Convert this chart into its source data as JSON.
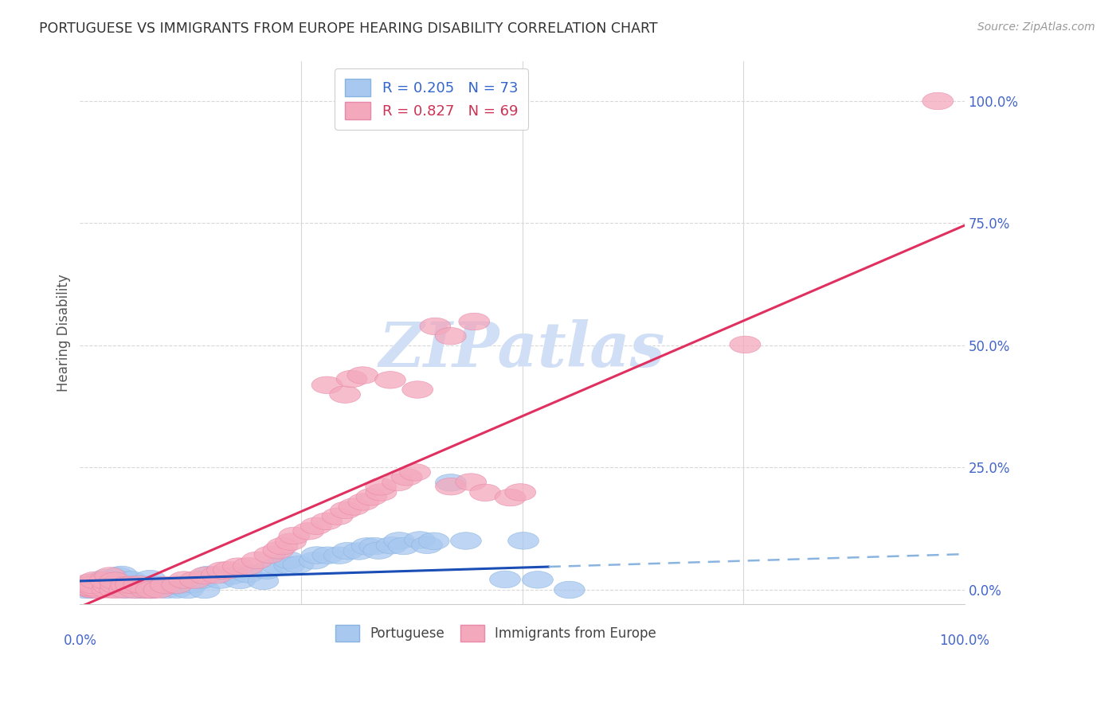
{
  "title": "PORTUGUESE VS IMMIGRANTS FROM EUROPE HEARING DISABILITY CORRELATION CHART",
  "source": "Source: ZipAtlas.com",
  "ylabel": "Hearing Disability",
  "ytick_values": [
    0,
    25,
    50,
    75,
    100
  ],
  "xlim": [
    0,
    100
  ],
  "ylim": [
    -3,
    108
  ],
  "portuguese_R": 0.205,
  "portuguese_N": 73,
  "immigrants_R": 0.827,
  "immigrants_N": 69,
  "blue_scatter_color": "#a8c8f0",
  "pink_scatter_color": "#f4a8bc",
  "blue_line_color": "#1a4db5",
  "pink_line_color": "#e03060",
  "blue_dashed_color": "#8ab4e0",
  "watermark_color": "#d0dff5",
  "background_color": "#ffffff",
  "grid_color": "#d8d8d8",
  "title_color": "#333333",
  "tick_label_color": "#4466cc",
  "legend_text_blue": "#3366cc",
  "legend_text_pink": "#cc3355",
  "slope_blue": 0.055,
  "intercept_blue": 1.8,
  "slope_pink": 0.78,
  "intercept_pink": -3.5,
  "solid_end_x": 53,
  "blue_scatter_x": [
    1,
    1,
    1,
    1,
    2,
    2,
    2,
    2,
    2,
    3,
    3,
    3,
    3,
    3,
    3,
    4,
    4,
    4,
    4,
    5,
    5,
    5,
    5,
    6,
    6,
    6,
    7,
    7,
    8,
    8,
    8,
    9,
    9,
    10,
    10,
    11,
    11,
    12,
    13,
    14,
    14,
    15,
    16,
    17,
    18,
    19,
    20,
    21,
    22,
    23,
    24,
    25,
    26,
    27,
    28,
    29,
    30,
    31,
    32,
    33,
    34,
    35,
    36,
    37,
    38,
    39,
    40,
    42,
    44,
    48,
    50,
    52,
    55
  ],
  "blue_scatter_y": [
    0,
    0,
    0.5,
    1,
    0,
    0.5,
    1,
    1.5,
    2,
    0,
    0.5,
    1,
    1.5,
    2,
    2.5,
    0,
    1,
    2,
    3,
    0,
    1,
    2,
    3,
    0,
    1,
    2,
    0,
    1,
    0,
    1,
    2,
    0,
    1,
    0,
    1,
    0,
    1,
    0,
    1,
    0,
    2,
    3,
    2,
    3,
    2,
    3,
    2,
    4,
    5,
    5,
    6,
    5,
    6,
    7,
    7,
    7,
    8,
    8,
    9,
    9,
    8,
    9,
    10,
    9,
    10,
    9,
    10,
    22,
    10,
    2,
    10,
    2,
    0
  ],
  "pink_scatter_x": [
    1,
    1,
    1,
    1,
    1,
    2,
    2,
    2,
    2,
    3,
    3,
    3,
    3,
    4,
    4,
    4,
    5,
    5,
    6,
    6,
    7,
    7,
    8,
    9,
    10,
    11,
    12,
    13,
    14,
    15,
    16,
    17,
    18,
    19,
    20,
    21,
    22,
    23,
    24,
    25,
    26,
    27,
    28,
    29,
    30,
    31,
    32,
    33,
    34,
    35,
    36,
    37,
    38,
    42,
    44,
    46,
    48,
    75,
    97,
    28,
    30,
    31,
    32,
    35,
    38,
    40,
    42,
    45,
    50
  ],
  "pink_scatter_y": [
    0,
    0,
    0.5,
    1,
    1.5,
    0,
    0.5,
    1,
    2,
    0,
    1,
    2,
    3,
    0,
    1,
    2,
    0,
    1,
    0,
    1,
    0,
    1,
    0,
    0,
    1,
    1,
    2,
    2,
    3,
    3,
    4,
    4,
    5,
    5,
    6,
    7,
    8,
    9,
    10,
    11,
    12,
    13,
    14,
    15,
    16,
    17,
    18,
    19,
    20,
    21,
    22,
    23,
    24,
    21,
    22,
    20,
    19,
    50,
    100,
    42,
    40,
    43,
    44,
    43,
    41,
    54,
    52,
    55,
    20
  ]
}
